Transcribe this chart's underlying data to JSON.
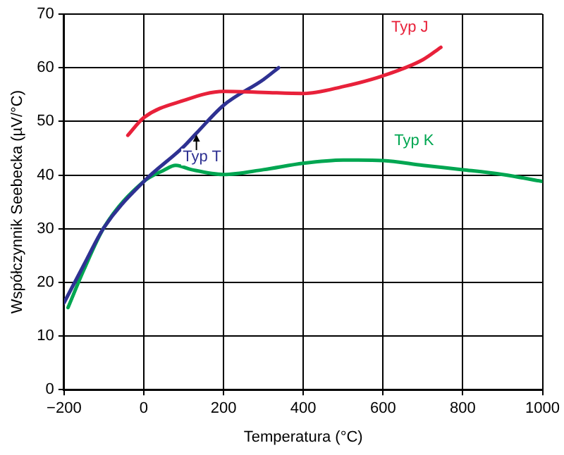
{
  "chart_data": {
    "type": "line",
    "xlabel": "Temperatura (°C)",
    "ylabel": "Współczynnik Seebecka (µV/°C)",
    "xlim": [
      -200,
      1000
    ],
    "ylim": [
      0,
      70
    ],
    "xticks": [
      -200,
      0,
      200,
      400,
      600,
      800,
      1000
    ],
    "yticks": [
      0,
      10,
      20,
      30,
      40,
      50,
      60,
      70
    ],
    "grid": true,
    "legend": false,
    "marker": "none",
    "line_style": "solid",
    "series": [
      {
        "name": "Typ J",
        "color": "#e8213a",
        "x": [
          -40,
          0,
          100,
          200,
          300,
          400,
          500,
          600,
          700,
          745
        ],
        "values": [
          47.4,
          50.7,
          53.9,
          55.6,
          55.4,
          55.2,
          56.5,
          58.5,
          61.5,
          63.8
        ]
      },
      {
        "name": "Typ T",
        "color": "#2e3192",
        "x": [
          -200,
          -150,
          -100,
          0,
          100,
          132,
          200,
          300,
          338
        ],
        "values": [
          16.2,
          23.3,
          30.2,
          38.8,
          45.3,
          47.8,
          53,
          57.8,
          60
        ]
      },
      {
        "name": "Typ K",
        "color": "#00a651",
        "x": [
          -190,
          -150,
          -100,
          0,
          50,
          80,
          120,
          200,
          300,
          400,
          500,
          600,
          700,
          800,
          900,
          1000
        ],
        "values": [
          15.3,
          22.4,
          30.2,
          38.8,
          40.9,
          41.8,
          41,
          40.1,
          41,
          42.2,
          42.8,
          42.7,
          41.8,
          41,
          40.1,
          38.8
        ]
      }
    ]
  }
}
